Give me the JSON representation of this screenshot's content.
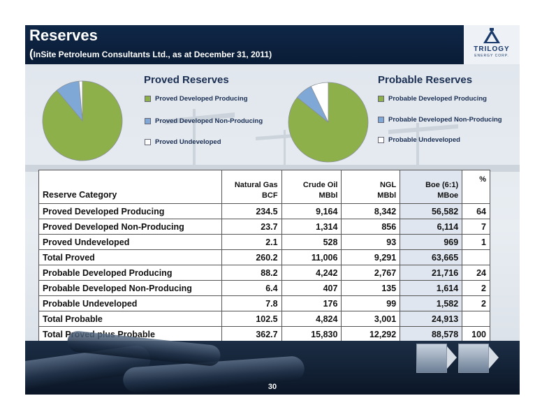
{
  "header": {
    "title": "Reserves",
    "subtitle_paren": "(",
    "subtitle": "InSite Petroleum Consultants Ltd., as at December 31, 2011)",
    "logo_text": "TRILOGY",
    "logo_sub": "ENERGY CORP."
  },
  "colors": {
    "green": "#8db04a",
    "blue": "#7fa8d6",
    "white": "#ffffff",
    "header": "#0f2747"
  },
  "proved": {
    "title": "Proved Reserves",
    "legend": [
      "Proved Developed Producing",
      "Proved Developed Non-Producing",
      "Proved Undeveloped"
    ],
    "slices": [
      64,
      7,
      1
    ]
  },
  "probable": {
    "title": "Probable Reserves",
    "legend": [
      "Probable Developed Producing",
      "Probable Developed Non-Producing",
      "Probable Undeveloped"
    ],
    "slices": [
      24,
      2,
      2
    ]
  },
  "table": {
    "headers": {
      "category": "Reserve Category",
      "gas": [
        "Natural  Gas",
        "BCF"
      ],
      "oil": [
        "Crude Oil",
        "MBbl"
      ],
      "ngl": [
        "NGL",
        "MBbl"
      ],
      "boe": [
        "Boe (6:1)",
        "MBoe"
      ],
      "pct": "%"
    },
    "rows": [
      {
        "category": "Proved Developed Producing",
        "gas": "234.5",
        "oil": "9,164",
        "ngl": "8,342",
        "boe": "56,582",
        "pct": "64"
      },
      {
        "category": "Proved Developed Non-Producing",
        "gas": "23.7",
        "oil": "1,314",
        "ngl": "856",
        "boe": "6,114",
        "pct": "7"
      },
      {
        "category": "Proved Undeveloped",
        "gas": "2.1",
        "oil": "528",
        "ngl": "93",
        "boe": "969",
        "pct": "1"
      },
      {
        "category": "Total Proved",
        "gas": "260.2",
        "oil": "11,006",
        "ngl": "9,291",
        "boe": "63,665",
        "pct": ""
      },
      {
        "category": "Probable Developed Producing",
        "gas": "88.2",
        "oil": "4,242",
        "ngl": "2,767",
        "boe": "21,716",
        "pct": "24"
      },
      {
        "category": "Probable Developed Non-Producing",
        "gas": "6.4",
        "oil": "407",
        "ngl": "135",
        "boe": "1,614",
        "pct": "2"
      },
      {
        "category": "Probable Undeveloped",
        "gas": "7.8",
        "oil": "176",
        "ngl": "99",
        "boe": "1,582",
        "pct": "2"
      },
      {
        "category": "Total Probable",
        "gas": "102.5",
        "oil": "4,824",
        "ngl": "3,001",
        "boe": "24,913",
        "pct": ""
      },
      {
        "category": "Total Proved plus Probable",
        "gas": "362.7",
        "oil": "15,830",
        "ngl": "12,292",
        "boe": "88,578",
        "pct": "100"
      }
    ]
  },
  "footer": {
    "page_number": "30"
  }
}
